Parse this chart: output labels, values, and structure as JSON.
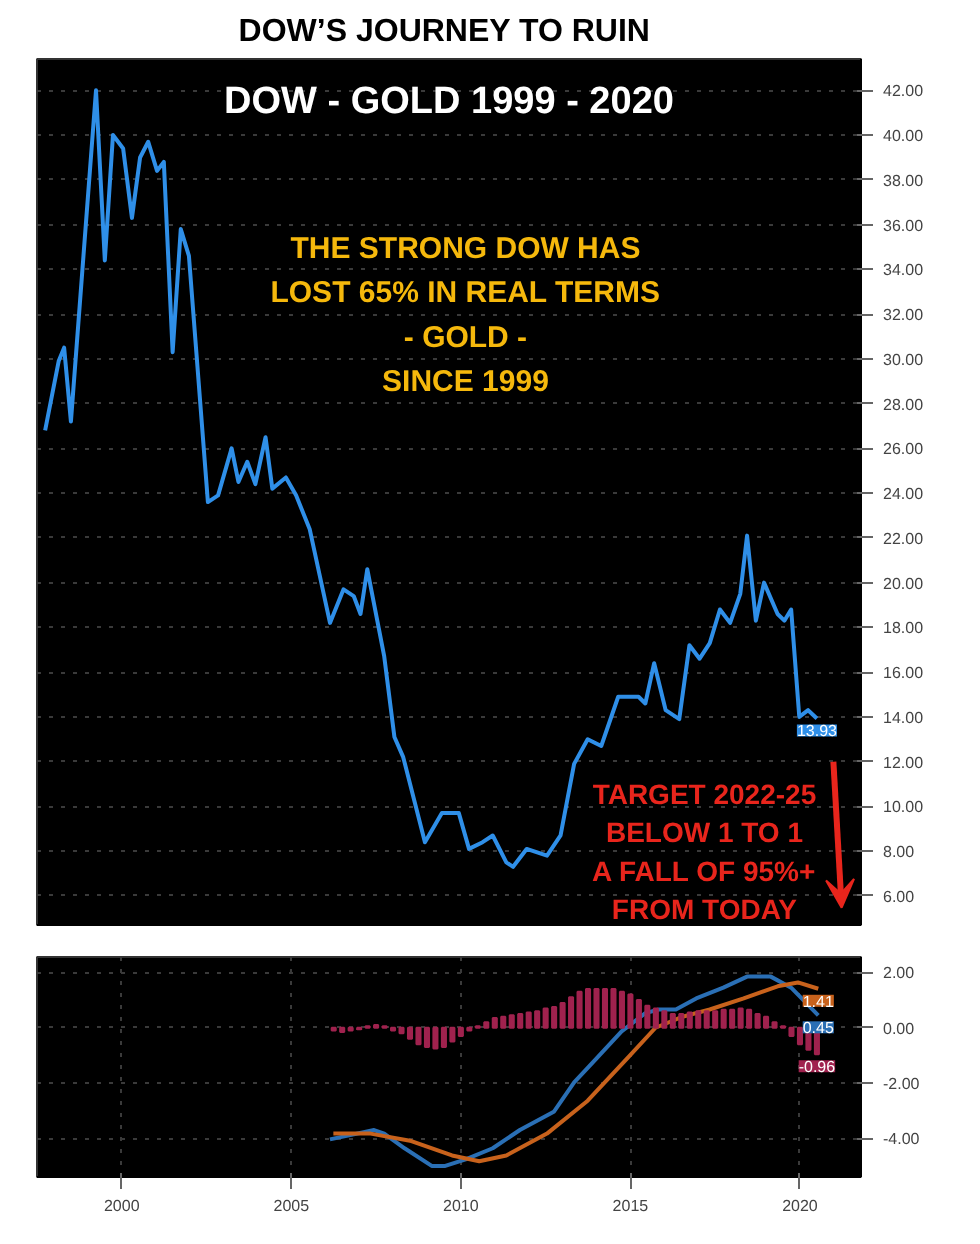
{
  "chart_data": [
    {
      "type": "line",
      "title": "DOW’S JOURNEY  TO RUIN",
      "subtitle": "DOW - GOLD 1999 - 2020",
      "annotations": [
        "THE STRONG DOW HAS\nLOST 65% IN REAL TERMS\n- GOLD -\nSINCE 1999",
        "TARGET 2022-25\nBELOW 1 TO 1\nA FALL OF 95%+\nFROM TODAY"
      ],
      "xlim": [
        1997.5,
        2021.8
      ],
      "ylim": [
        4.7,
        43.4
      ],
      "yticks": [
        {
          "value": 6,
          "label": "6.00"
        },
        {
          "value": 8,
          "label": "8.00"
        },
        {
          "value": 10,
          "label": "10.00"
        },
        {
          "value": 12,
          "label": "12.00"
        },
        {
          "value": 14,
          "label": "14.00"
        },
        {
          "value": 16,
          "label": "16.00"
        },
        {
          "value": 18,
          "label": "18.00"
        },
        {
          "value": 20,
          "label": "20.00"
        },
        {
          "value": 22,
          "label": "22.00"
        },
        {
          "value": 24,
          "label": "24.00"
        },
        {
          "value": 26,
          "label": "26.00"
        },
        {
          "value": 28,
          "label": "28.00"
        },
        {
          "value": 30,
          "label": "30.00"
        },
        {
          "value": 32,
          "label": "32.00"
        },
        {
          "value": 34,
          "label": "34.00"
        },
        {
          "value": 36,
          "label": "36.00"
        },
        {
          "value": 38,
          "label": "38.00"
        },
        {
          "value": 40,
          "label": "40.00"
        },
        {
          "value": 42,
          "label": "42.00"
        }
      ],
      "grid": true,
      "tick_labels": "y",
      "series": [
        {
          "color": "#2f8fe8",
          "x": [
            1997.74,
            1998.14,
            1998.3,
            1998.5,
            1999.24,
            1999.5,
            1999.74,
            2000.04,
            2000.3,
            2000.54,
            2000.78,
            2001.04,
            2001.24,
            2001.5,
            2001.74,
            2001.98,
            2002.54,
            2002.84,
            2003.24,
            2003.44,
            2003.7,
            2003.94,
            2004.24,
            2004.44,
            2004.84,
            2005.14,
            2005.54,
            2006.14,
            2006.54,
            2006.84,
            2007.04,
            2007.24,
            2007.74,
            2008.04,
            2008.3,
            2008.94,
            2009.44,
            2009.94,
            2010.24,
            2010.64,
            2010.94,
            2011.34,
            2011.54,
            2011.94,
            2012.54,
            2012.94,
            2013.34,
            2013.74,
            2014.14,
            2014.64,
            2015.24,
            2015.44,
            2015.7,
            2016.04,
            2016.44,
            2016.74,
            2017.04,
            2017.34,
            2017.64,
            2017.94,
            2018.24,
            2018.44,
            2018.7,
            2018.94,
            2019.34,
            2019.54,
            2019.74,
            2019.98,
            2020.24,
            2020.5
          ],
          "values": [
            26.8,
            29.9,
            30.5,
            27.2,
            42.0,
            34.4,
            40.0,
            39.4,
            36.3,
            39.0,
            39.7,
            38.4,
            38.8,
            30.3,
            35.8,
            34.6,
            23.6,
            23.9,
            26.0,
            24.5,
            25.4,
            24.4,
            26.5,
            24.2,
            24.7,
            23.9,
            22.4,
            18.2,
            19.7,
            19.4,
            18.6,
            20.6,
            16.7,
            13.1,
            12.2,
            8.4,
            9.7,
            9.7,
            8.1,
            8.4,
            8.7,
            7.5,
            7.3,
            8.1,
            7.8,
            8.7,
            11.9,
            13.0,
            12.7,
            14.9,
            14.9,
            14.6,
            16.4,
            14.3,
            13.9,
            17.2,
            16.6,
            17.3,
            18.8,
            18.2,
            19.5,
            22.1,
            18.3,
            20.0,
            18.6,
            18.3,
            18.8,
            14.0,
            14.3,
            13.93
          ],
          "value_labels": [
            null,
            null,
            null,
            null,
            null,
            null,
            null,
            null,
            null,
            null,
            null,
            null,
            null,
            null,
            null,
            null,
            null,
            null,
            null,
            null,
            null,
            null,
            null,
            null,
            null,
            null,
            null,
            null,
            null,
            null,
            null,
            null,
            null,
            null,
            null,
            null,
            null,
            null,
            null,
            null,
            null,
            null,
            null,
            null,
            null,
            null,
            null,
            null,
            null,
            null,
            null,
            null,
            null,
            null,
            null,
            null,
            null,
            null,
            null,
            null,
            null,
            null,
            null,
            null,
            null,
            null,
            null,
            null,
            null,
            "13.93"
          ]
        }
      ]
    },
    {
      "type": "line",
      "xlim": [
        1997.5,
        2021.8
      ],
      "ylim": [
        -5.4,
        2.56
      ],
      "xticks": [
        2000,
        2005,
        2010,
        2015,
        2020
      ],
      "yticks": [
        {
          "value": 2,
          "label": "2.00"
        },
        {
          "value": 0,
          "label": "0.00"
        },
        {
          "value": -2,
          "label": "-2.00"
        },
        {
          "value": -4,
          "label": "-4.00"
        }
      ],
      "grid": true,
      "series": [
        {
          "color": "#2a6fb5",
          "x": [
            2006.14,
            2007.44,
            2007.74,
            2008.34,
            2009.14,
            2009.54,
            2010.14,
            2010.94,
            2011.74,
            2012.74,
            2013.34,
            2013.94,
            2014.74,
            2015.44,
            2015.84,
            2016.34,
            2016.94,
            2017.74,
            2018.44,
            2019.14,
            2019.74,
            2020.54
          ],
          "values": [
            -4.04,
            -3.7,
            -3.83,
            -4.36,
            -5.0,
            -5.0,
            -4.76,
            -4.36,
            -3.7,
            -3.04,
            -1.98,
            -1.19,
            -0.13,
            0.53,
            0.66,
            0.66,
            1.06,
            1.45,
            1.85,
            1.85,
            1.45,
            0.45
          ],
          "value_labels": [
            null,
            null,
            null,
            null,
            null,
            null,
            null,
            null,
            null,
            null,
            null,
            null,
            null,
            null,
            null,
            null,
            null,
            null,
            null,
            null,
            null,
            "0.45"
          ]
        },
        {
          "color": "#c8621c",
          "x": [
            2006.24,
            2007.34,
            2008.54,
            2009.74,
            2010.54,
            2011.34,
            2012.54,
            2013.74,
            2014.94,
            2015.74,
            2016.54,
            2017.34,
            2018.34,
            2019.34,
            2019.94,
            2020.54
          ],
          "values": [
            -3.83,
            -3.83,
            -4.1,
            -4.62,
            -4.83,
            -4.62,
            -3.83,
            -2.64,
            -1.06,
            0.0,
            0.4,
            0.66,
            1.06,
            1.5,
            1.64,
            1.41
          ],
          "value_labels": [
            null,
            null,
            null,
            null,
            null,
            null,
            null,
            null,
            null,
            null,
            null,
            null,
            null,
            null,
            null,
            "1.41"
          ]
        },
        {
          "type": "bar",
          "color": "#a0224e",
          "x": [
            2006.25,
            2006.5,
            2006.75,
            2007.0,
            2007.25,
            2007.5,
            2007.75,
            2008.0,
            2008.25,
            2008.5,
            2008.75,
            2009.0,
            2009.25,
            2009.5,
            2009.75,
            2010.0,
            2010.25,
            2010.5,
            2010.75,
            2011.0,
            2011.25,
            2011.5,
            2011.75,
            2012.0,
            2012.25,
            2012.5,
            2012.75,
            2013.0,
            2013.25,
            2013.5,
            2013.75,
            2014.0,
            2014.25,
            2014.5,
            2014.75,
            2015.0,
            2015.25,
            2015.5,
            2015.75,
            2016.0,
            2016.25,
            2016.5,
            2016.75,
            2017.0,
            2017.25,
            2017.5,
            2017.75,
            2018.0,
            2018.25,
            2018.5,
            2018.75,
            2019.0,
            2019.25,
            2019.5,
            2019.75,
            2020.0,
            2020.25,
            2020.5
          ],
          "values": [
            -0.1,
            -0.15,
            -0.1,
            -0.05,
            0.05,
            0.1,
            0.05,
            -0.1,
            -0.2,
            -0.4,
            -0.6,
            -0.7,
            -0.75,
            -0.7,
            -0.5,
            -0.3,
            -0.1,
            0.05,
            0.2,
            0.35,
            0.4,
            0.45,
            0.5,
            0.55,
            0.6,
            0.7,
            0.75,
            0.9,
            1.1,
            1.3,
            1.4,
            1.4,
            1.4,
            1.4,
            1.3,
            1.2,
            1.0,
            0.8,
            0.7,
            0.6,
            0.5,
            0.5,
            0.55,
            0.6,
            0.6,
            0.6,
            0.65,
            0.65,
            0.7,
            0.65,
            0.5,
            0.4,
            0.2,
            0.05,
            -0.3,
            -0.6,
            -0.8,
            -0.96
          ],
          "value_labels": [
            null,
            null,
            null,
            null,
            null,
            null,
            null,
            null,
            null,
            null,
            null,
            null,
            null,
            null,
            null,
            null,
            null,
            null,
            null,
            null,
            null,
            null,
            null,
            null,
            null,
            null,
            null,
            null,
            null,
            null,
            null,
            null,
            null,
            null,
            null,
            null,
            null,
            null,
            null,
            null,
            null,
            null,
            null,
            null,
            null,
            null,
            null,
            null,
            null,
            null,
            null,
            null,
            null,
            null,
            null,
            null,
            null,
            "-0.96"
          ]
        }
      ]
    }
  ]
}
